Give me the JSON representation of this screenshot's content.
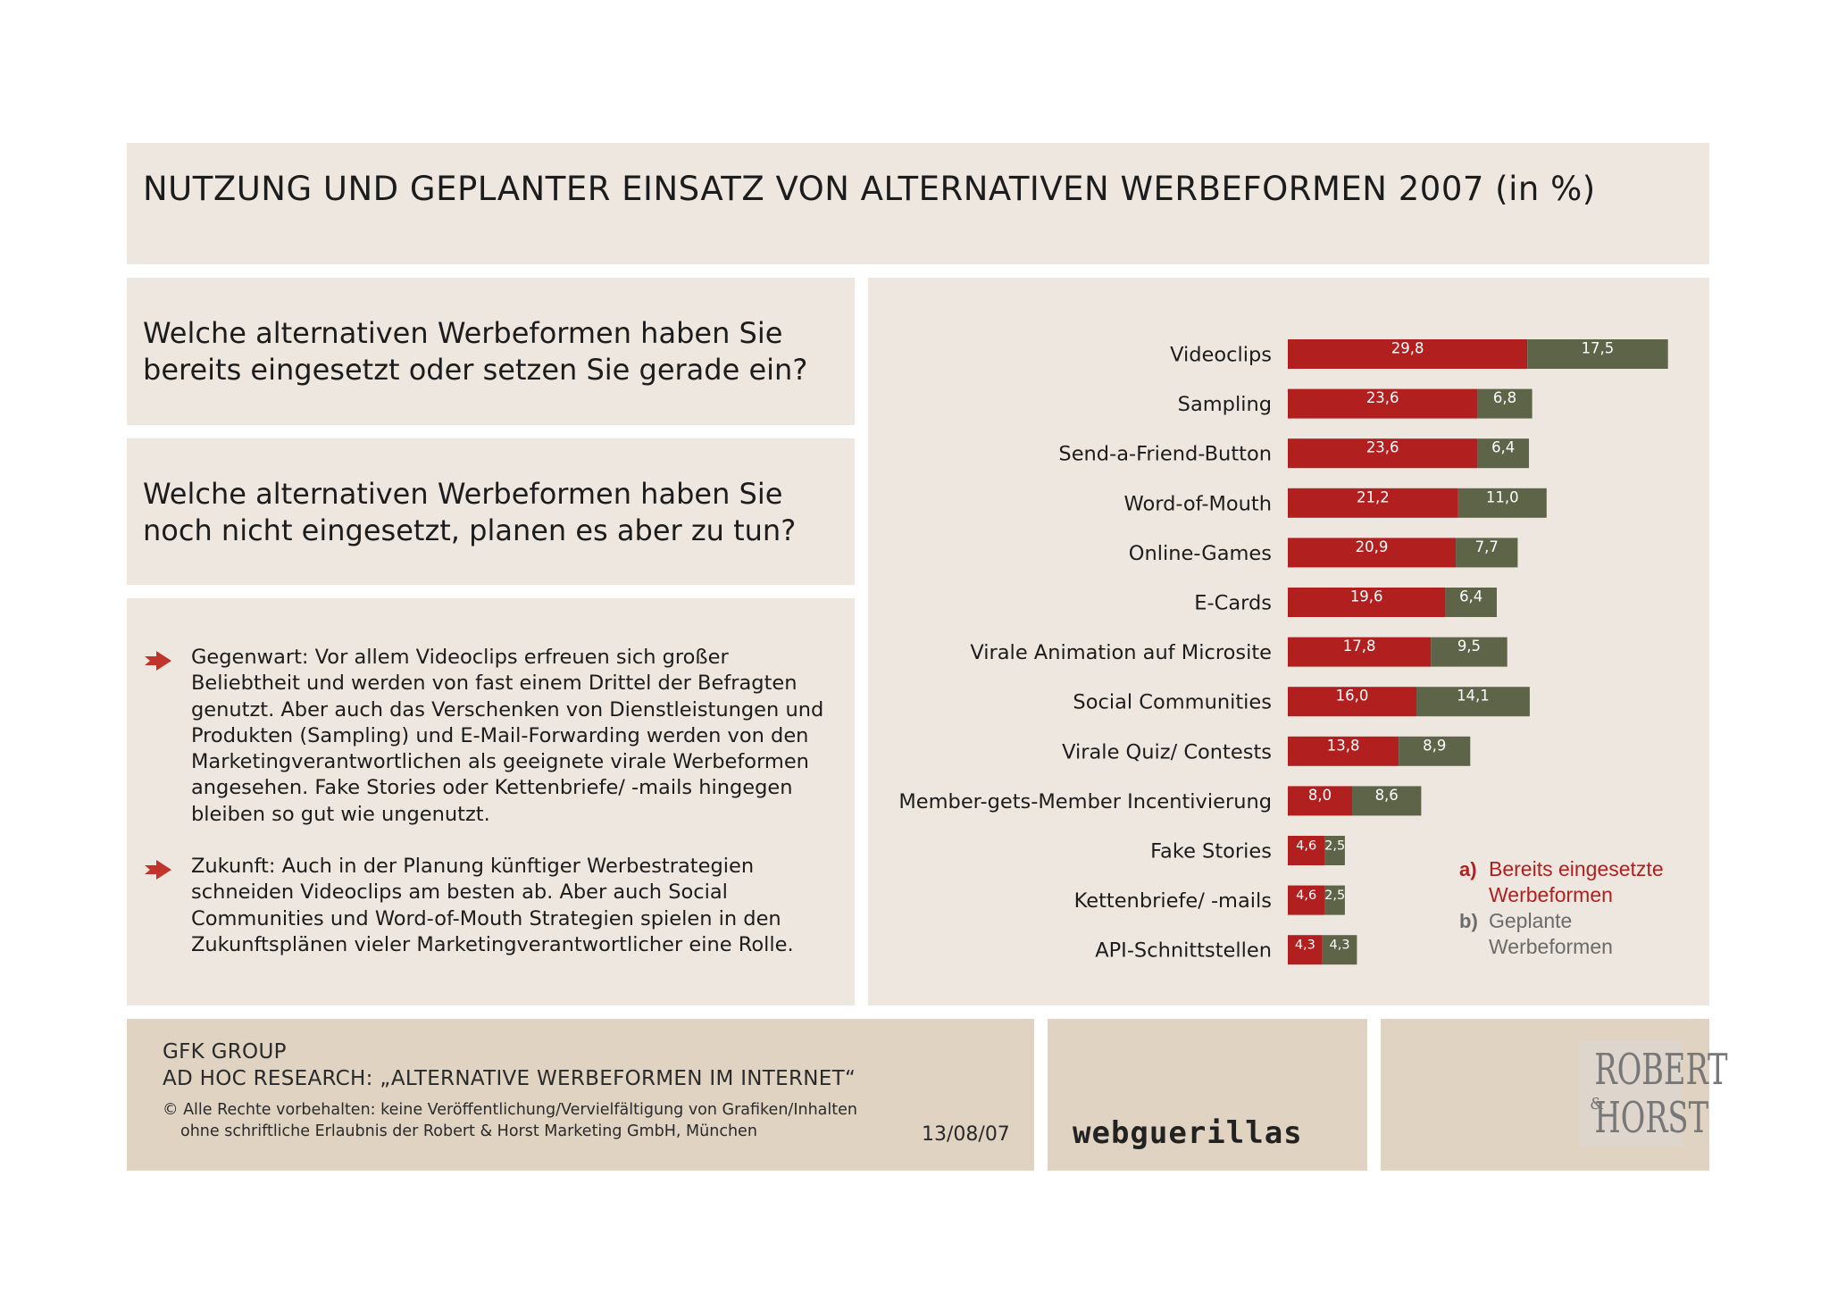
{
  "title": "NUTZUNG UND GEPLANTER EINSATZ VON ALTERNATIVEN WERBEFORMEN 2007 (in %)",
  "questions": {
    "q1": "Welche alternativen Werbeformen haben Sie bereits eingesetzt oder setzen Sie gerade ein?",
    "q2": "Welche alternativen Werbeformen haben Sie noch nicht eingesetzt, planen es aber zu tun?"
  },
  "bullets": [
    "Gegenwart: Vor allem Videoclips erfreuen sich großer Beliebtheit und werden von fast einem Drittel der Befragten genutzt. Aber auch das Verschenken von Dienstleistungen und Produkten (Sampling) und E-Mail-Forwarding werden von den Marketingverantwortlichen als geeignete virale Werbeformen angesehen. Fake Stories oder Kettenbriefe/ -mails hingegen bleiben so gut wie ungenutzt.",
    "Zukunft: Auch in der Planung künftiger Werbestrategien schneiden Videoclips am besten ab. Aber auch Social Communities und Word-of-Mouth Strategien spielen in den Zukunftsplänen vieler Marketingverantwortlicher eine Rolle."
  ],
  "colors": {
    "series_a": "#b11f1f",
    "series_b": "#5e6448",
    "legend_a_text": "#b11f1f",
    "legend_b_text": "#6b6b6b",
    "panel": "#ede7df",
    "footer_panel": "#e0d3c2",
    "bullet_arrow": "#c0342c"
  },
  "chart_data": {
    "type": "bar",
    "orientation": "horizontal",
    "stacked": true,
    "categories": [
      "Videoclips",
      "Sampling",
      "Send-a-Friend-Button",
      "Word-of-Mouth",
      "Online-Games",
      "E-Cards",
      "Virale Animation auf Microsite",
      "Social Communities",
      "Virale Quiz/ Contests",
      "Member-gets-Member Incentivierung",
      "Fake Stories",
      "Kettenbriefe/ -mails",
      "API-Schnittstellen"
    ],
    "series": [
      {
        "name": "Bereits eingesetzte Werbeformen",
        "values": [
          29.8,
          23.6,
          23.6,
          21.2,
          20.9,
          19.6,
          17.8,
          16.0,
          13.8,
          8.0,
          4.6,
          4.6,
          4.3
        ],
        "labels": [
          "29,8",
          "23,6",
          "23,6",
          "21,2",
          "20,9",
          "19,6",
          "17,8",
          "16,0",
          "13,8",
          "8,0",
          "4,6",
          "4,6",
          "4,3"
        ]
      },
      {
        "name": "Geplante Werbeformen",
        "values": [
          17.5,
          6.8,
          6.4,
          11.0,
          7.7,
          6.4,
          9.5,
          14.1,
          8.9,
          8.6,
          2.5,
          2.5,
          4.3
        ],
        "labels": [
          "17,5",
          "6,8",
          "6,4",
          "11,0",
          "7,7",
          "6,4",
          "9,5",
          "14,1",
          "8,9",
          "8,6",
          "2,5",
          "2,5",
          "4,3"
        ]
      }
    ],
    "legend": {
      "position": "bottom-right",
      "a_marker": "a)",
      "a_lines": [
        "Bereits eingesetzte",
        "Werbeformen"
      ],
      "b_marker": "b)",
      "b_lines": [
        "Geplante",
        "Werbeformen"
      ]
    }
  },
  "footer": {
    "org": "GFK GROUP",
    "study": "AD HOC RESEARCH: „ALTERNATIVE WERBEFORMEN IM INTERNET“",
    "copyright_line1": "© Alle Rechte vorbehalten: keine Veröffentlichung/Vervielfältigung von Grafiken/Inhalten",
    "copyright_line2": "ohne schriftliche Erlaubnis der Robert & Horst Marketing GmbH, München",
    "date": "13/08/07",
    "partner_logo": "webguerillas",
    "brand_logo_line1": "ROBERT",
    "brand_logo_amp": "&",
    "brand_logo_line2": "HORST"
  }
}
